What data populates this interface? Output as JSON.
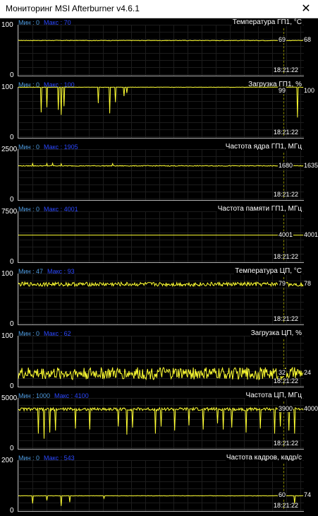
{
  "window": {
    "title": "Мониторинг MSI Afterburner v4.6.1",
    "close_glyph": "✕"
  },
  "trace_color": "#ffff33",
  "cursor_time": "18:21:22",
  "graphs": [
    {
      "id": "gpu-temp",
      "title": "Температура ГП1, °C",
      "min_label": "Мин : 0",
      "max_label": "Макс : 70",
      "axis_top": "100",
      "axis_bottom": "0",
      "axis_max": 100,
      "current": "69",
      "right_value": "68",
      "trace": {
        "base": 69,
        "noise": 0.5,
        "spikes": []
      }
    },
    {
      "id": "gpu-load",
      "title": "Загрузка ГП1, %",
      "min_label": "Мин : 0",
      "max_label": "Макс : 100",
      "axis_top": "100",
      "axis_bottom": "0",
      "axis_max": 100,
      "current": "99",
      "right_value": "100",
      "trace": {
        "base": 99.5,
        "noise": 0.3,
        "spikes": [
          [
            0.08,
            50
          ],
          [
            0.1,
            60
          ],
          [
            0.14,
            55
          ],
          [
            0.15,
            45
          ],
          [
            0.16,
            62
          ],
          [
            0.28,
            68
          ],
          [
            0.32,
            48
          ],
          [
            0.34,
            70
          ],
          [
            0.37,
            82
          ],
          [
            0.38,
            88
          ],
          [
            0.98,
            40
          ]
        ]
      }
    },
    {
      "id": "gpu-core-clock",
      "title": "Частота ядра ГП1, МГц",
      "min_label": "Мин : 0",
      "max_label": "Макс : 1905",
      "axis_top": "2500",
      "axis_bottom": "0",
      "axis_max": 2500,
      "current": "1680",
      "right_value": "1635",
      "trace": {
        "base": 1680,
        "noise": 20,
        "spikes": [
          [
            0.05,
            1800
          ],
          [
            0.1,
            1790
          ],
          [
            0.12,
            1810
          ],
          [
            0.15,
            1785
          ],
          [
            0.33,
            1790
          ]
        ]
      }
    },
    {
      "id": "gpu-mem-clock",
      "title": "Частота памяти ГП1, МГц",
      "min_label": "Мин : 0",
      "max_label": "Макс : 4001",
      "axis_top": "7500",
      "axis_bottom": "0",
      "axis_max": 7500,
      "current": "4001",
      "right_value": "4001",
      "trace": {
        "base": 4001,
        "noise": 0,
        "spikes": []
      }
    },
    {
      "id": "cpu-temp",
      "title": "Температура ЦП, °C",
      "min_label": "Мин : 47",
      "max_label": "Макс : 93",
      "axis_top": "100",
      "axis_bottom": "0",
      "axis_max": 100,
      "current": "79",
      "right_value": "78",
      "trace": {
        "base": 79,
        "noise": 4,
        "spikes": []
      }
    },
    {
      "id": "cpu-load",
      "title": "Загрузка ЦП, %",
      "min_label": "Мин : 0",
      "max_label": "Макс : 62",
      "axis_top": "100",
      "axis_bottom": "0",
      "axis_max": 100,
      "current": "32",
      "right_value": "24",
      "trace": {
        "base": 26,
        "noise": 12,
        "spikes": []
      }
    },
    {
      "id": "cpu-clock",
      "title": "Частота ЦП, МГц",
      "min_label": "Мин : 1000",
      "max_label": "Макс : 4100",
      "axis_top": "5000",
      "axis_bottom": "0",
      "axis_max": 5000,
      "current": "3900",
      "right_value": "4000",
      "trace": {
        "base": 3900,
        "noise": 150,
        "spikes": [
          [
            0.07,
            1500
          ],
          [
            0.09,
            1000
          ],
          [
            0.11,
            1600
          ],
          [
            0.13,
            1800
          ],
          [
            0.2,
            2000
          ],
          [
            0.25,
            1900
          ],
          [
            0.35,
            2200
          ],
          [
            0.38,
            1400
          ],
          [
            0.4,
            2100
          ],
          [
            0.48,
            1500
          ],
          [
            0.5,
            2200
          ],
          [
            0.55,
            1800
          ],
          [
            0.6,
            2300
          ],
          [
            0.65,
            1900
          ],
          [
            0.7,
            2500
          ],
          [
            0.72,
            1900
          ],
          [
            0.75,
            2100
          ],
          [
            0.8,
            1600
          ],
          [
            0.85,
            2000
          ],
          [
            0.9,
            1500
          ],
          [
            0.92,
            2200
          ],
          [
            0.95,
            1800
          ],
          [
            0.97,
            1500
          ]
        ]
      }
    },
    {
      "id": "framerate",
      "title": "Частота кадров, кадр/с",
      "min_label": "Мин : 0",
      "max_label": "Макс : 543",
      "axis_top": "200",
      "axis_bottom": "0",
      "axis_max": 200,
      "current": "60",
      "right_value": "74",
      "trace": {
        "base": 60,
        "noise": 0.8,
        "spikes": [
          [
            0.05,
            30
          ],
          [
            0.1,
            42
          ],
          [
            0.15,
            20
          ],
          [
            0.18,
            35
          ],
          [
            0.3,
            50
          ],
          [
            0.97,
            30
          ]
        ]
      }
    }
  ]
}
